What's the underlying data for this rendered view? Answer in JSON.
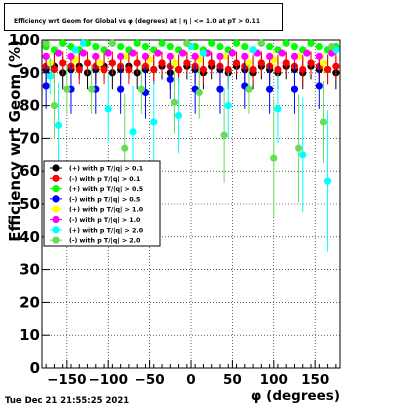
{
  "chart_data": {
    "type": "scatter",
    "title": "Efficiency wrt Geom for Global vs φ (degrees) at | η | <= 1.0 at pT > 0.11",
    "xlabel": "φ (degrees)",
    "ylabel": "Efficiency wrt Geom (%)",
    "xlim": [
      -180,
      180
    ],
    "ylim": [
      0,
      100
    ],
    "xticks": [
      "−150",
      "−100",
      "−50",
      "0",
      "50",
      "100",
      "150"
    ],
    "yticks": [
      "0",
      "10",
      "20",
      "30",
      "40",
      "50",
      "60",
      "70",
      "80",
      "90",
      "100"
    ],
    "grid": true,
    "legend_position": "middle-left",
    "timestamp": "Tue Dec 21 21:55:25 2021",
    "series": [
      {
        "name": "(+) with p T/|q| > 0.1",
        "color": "#000000",
        "points": [
          [
            -175,
            91
          ],
          [
            -165,
            92
          ],
          [
            -155,
            90
          ],
          [
            -145,
            91
          ],
          [
            -135,
            92
          ],
          [
            -125,
            90
          ],
          [
            -115,
            91
          ],
          [
            -105,
            92
          ],
          [
            -95,
            90
          ],
          [
            -85,
            91
          ],
          [
            -75,
            92
          ],
          [
            -65,
            90
          ],
          [
            -55,
            91
          ],
          [
            -45,
            91
          ],
          [
            -35,
            92
          ],
          [
            -25,
            90
          ],
          [
            -15,
            91
          ],
          [
            -5,
            92
          ],
          [
            5,
            91
          ],
          [
            15,
            90
          ],
          [
            25,
            92
          ],
          [
            35,
            91
          ],
          [
            45,
            90
          ],
          [
            55,
            92
          ],
          [
            65,
            91
          ],
          [
            75,
            90
          ],
          [
            85,
            92
          ],
          [
            95,
            91
          ],
          [
            105,
            90
          ],
          [
            115,
            92
          ],
          [
            125,
            91
          ],
          [
            135,
            90
          ],
          [
            145,
            92
          ],
          [
            155,
            91
          ],
          [
            165,
            91
          ],
          [
            175,
            90
          ]
        ]
      },
      {
        "name": "(-) with p T/|q| > 0.1",
        "color": "#ff0000",
        "points": [
          [
            -175,
            92
          ],
          [
            -165,
            91
          ],
          [
            -155,
            93
          ],
          [
            -145,
            92
          ],
          [
            -135,
            91
          ],
          [
            -125,
            93
          ],
          [
            -115,
            92
          ],
          [
            -105,
            91
          ],
          [
            -95,
            93
          ],
          [
            -85,
            92
          ],
          [
            -75,
            91
          ],
          [
            -65,
            93
          ],
          [
            -55,
            92
          ],
          [
            -45,
            91
          ],
          [
            -35,
            93
          ],
          [
            -25,
            92
          ],
          [
            -15,
            91
          ],
          [
            -5,
            93
          ],
          [
            5,
            92
          ],
          [
            15,
            91
          ],
          [
            25,
            93
          ],
          [
            35,
            92
          ],
          [
            45,
            91
          ],
          [
            55,
            93
          ],
          [
            65,
            92
          ],
          [
            75,
            91
          ],
          [
            85,
            93
          ],
          [
            95,
            92
          ],
          [
            105,
            91
          ],
          [
            115,
            93
          ],
          [
            125,
            92
          ],
          [
            135,
            91
          ],
          [
            145,
            93
          ],
          [
            155,
            92
          ],
          [
            165,
            91
          ],
          [
            175,
            92
          ]
        ]
      },
      {
        "name": "(+) with p T/|q| > 0.5",
        "color": "#00ff00",
        "points": [
          [
            -175,
            98
          ],
          [
            -165,
            97
          ],
          [
            -155,
            99
          ],
          [
            -145,
            98
          ],
          [
            -135,
            97
          ],
          [
            -125,
            99
          ],
          [
            -115,
            98
          ],
          [
            -105,
            97
          ],
          [
            -95,
            99
          ],
          [
            -85,
            98
          ],
          [
            -75,
            97
          ],
          [
            -65,
            99
          ],
          [
            -55,
            98
          ],
          [
            -45,
            97
          ],
          [
            -35,
            99
          ],
          [
            -25,
            98
          ],
          [
            -15,
            97
          ],
          [
            -5,
            99
          ],
          [
            5,
            98
          ],
          [
            15,
            97
          ],
          [
            25,
            99
          ],
          [
            35,
            98
          ],
          [
            45,
            97
          ],
          [
            55,
            99
          ],
          [
            65,
            98
          ],
          [
            75,
            97
          ],
          [
            85,
            99
          ],
          [
            95,
            98
          ],
          [
            105,
            97
          ],
          [
            115,
            99
          ],
          [
            125,
            98
          ],
          [
            135,
            97
          ],
          [
            145,
            99
          ],
          [
            155,
            98
          ],
          [
            165,
            97
          ],
          [
            175,
            98
          ]
        ]
      },
      {
        "name": "(-) with p T/|q| > 0.5",
        "color": "#0000ff",
        "points": [
          [
            -175,
            86
          ],
          [
            -145,
            85
          ],
          [
            -115,
            85
          ],
          [
            -85,
            85
          ],
          [
            -55,
            84
          ],
          [
            -25,
            88
          ],
          [
            5,
            85
          ],
          [
            35,
            85
          ],
          [
            65,
            86
          ],
          [
            95,
            85
          ],
          [
            125,
            85
          ],
          [
            155,
            86
          ]
        ]
      },
      {
        "name": "(+) with p T/|q| > 1.0",
        "color": "#ffff00",
        "points": [
          [
            -170,
            93
          ],
          [
            -140,
            94
          ],
          [
            -110,
            93
          ],
          [
            -80,
            95
          ],
          [
            -50,
            94
          ],
          [
            -20,
            93
          ],
          [
            10,
            94
          ],
          [
            40,
            95
          ],
          [
            70,
            93
          ],
          [
            100,
            94
          ],
          [
            130,
            95
          ],
          [
            160,
            93
          ]
        ]
      },
      {
        "name": "(-) with p T/|q| > 1.0",
        "color": "#ff00ff",
        "points": [
          [
            -175,
            95
          ],
          [
            -160,
            96
          ],
          [
            -145,
            95
          ],
          [
            -130,
            96
          ],
          [
            -115,
            95
          ],
          [
            -100,
            96
          ],
          [
            -85,
            95
          ],
          [
            -70,
            96
          ],
          [
            -55,
            95
          ],
          [
            -40,
            96
          ],
          [
            -25,
            95
          ],
          [
            -10,
            96
          ],
          [
            5,
            95
          ],
          [
            20,
            96
          ],
          [
            35,
            95
          ],
          [
            50,
            96
          ],
          [
            65,
            95
          ],
          [
            80,
            96
          ],
          [
            95,
            95
          ],
          [
            110,
            96
          ],
          [
            125,
            95
          ],
          [
            140,
            96
          ],
          [
            155,
            95
          ],
          [
            170,
            96
          ]
        ]
      },
      {
        "name": "(+) with p T/|q| > 2.0",
        "color": "#00ffff",
        "points": [
          [
            -170,
            89
          ],
          [
            -160,
            74
          ],
          [
            -130,
            99
          ],
          [
            -100,
            79
          ],
          [
            -70,
            72
          ],
          [
            -45,
            75
          ],
          [
            -15,
            77
          ],
          [
            15,
            96
          ],
          [
            45,
            80
          ],
          [
            75,
            97
          ],
          [
            105,
            79
          ],
          [
            135,
            65
          ],
          [
            165,
            57
          ],
          [
            175,
            97
          ],
          [
            -140,
            97
          ],
          [
            0,
            98
          ]
        ]
      },
      {
        "name": "(-) with p T/|q| > 2.0",
        "color": "#66dd55",
        "points": [
          [
            -165,
            80
          ],
          [
            -150,
            85
          ],
          [
            -120,
            85
          ],
          [
            -80,
            67
          ],
          [
            -60,
            85
          ],
          [
            -20,
            81
          ],
          [
            10,
            84
          ],
          [
            40,
            71
          ],
          [
            70,
            85
          ],
          [
            100,
            64
          ],
          [
            130,
            67
          ],
          [
            160,
            75
          ],
          [
            -175,
            99
          ],
          [
            -95,
            99
          ],
          [
            -5,
            99
          ],
          [
            85,
            99
          ],
          [
            170,
            98
          ]
        ]
      }
    ]
  }
}
